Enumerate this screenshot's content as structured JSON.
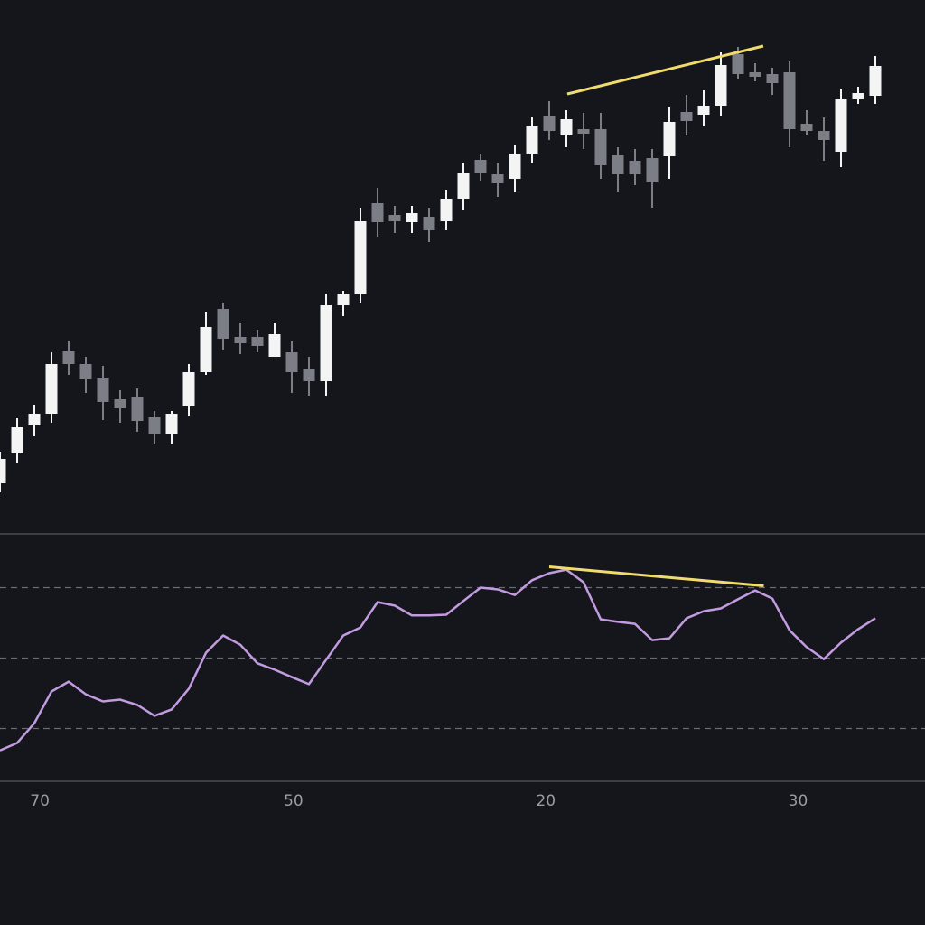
{
  "chart_data": [
    {
      "type": "candlestick",
      "ylim": [
        0,
        590
      ],
      "up_color": "#f4f4f4",
      "down_color": "#7b7e84",
      "open": [
        55,
        88,
        119,
        132,
        201,
        187,
        172,
        148,
        150,
        128,
        110,
        140,
        178,
        248,
        217,
        217,
        195,
        200,
        182,
        168,
        252,
        265,
        365,
        352,
        344,
        350,
        345,
        370,
        413,
        397,
        392,
        420,
        462,
        440,
        447,
        447,
        418,
        412,
        415,
        417,
        466,
        463,
        473,
        530,
        510,
        508,
        510,
        453,
        445,
        422,
        480,
        484
      ],
      "high": [
        90,
        127,
        142,
        200,
        212,
        195,
        185,
        158,
        160,
        135,
        135,
        187,
        245,
        255,
        232,
        225,
        232,
        212,
        195,
        265,
        268,
        360,
        382,
        362,
        362,
        360,
        380,
        410,
        420,
        410,
        430,
        460,
        478,
        468,
        465,
        465,
        427,
        425,
        425,
        472,
        485,
        490,
        532,
        538,
        520,
        515,
        522,
        468,
        460,
        492,
        494,
        528
      ],
      "low": [
        45,
        78,
        107,
        122,
        175,
        155,
        125,
        122,
        112,
        98,
        98,
        130,
        175,
        202,
        198,
        200,
        195,
        155,
        152,
        152,
        240,
        255,
        328,
        332,
        332,
        322,
        335,
        358,
        390,
        372,
        378,
        410,
        435,
        427,
        425,
        392,
        378,
        385,
        360,
        392,
        440,
        450,
        462,
        502,
        500,
        485,
        427,
        440,
        412,
        405,
        475,
        475
      ],
      "close": [
        82,
        117,
        132,
        187,
        187,
        170,
        145,
        138,
        124,
        110,
        132,
        178,
        228,
        215,
        210,
        207,
        220,
        178,
        168,
        252,
        265,
        345,
        344,
        345,
        354,
        335,
        370,
        398,
        398,
        387,
        420,
        450,
        445,
        458,
        442,
        407,
        397,
        397,
        388,
        455,
        456,
        473,
        518,
        508,
        505,
        498,
        447,
        445,
        435,
        480,
        487,
        517
      ],
      "trendlines": [
        {
          "x": [
            33.05,
            44.47
          ],
          "values": [
            486,
            539
          ],
          "color": "#f0dc6e"
        }
      ]
    },
    {
      "type": "line",
      "ylim": [
        15,
        85
      ],
      "levels": [
        70,
        50,
        30
      ],
      "color": "#c39be0",
      "values": [
        23.8,
        25.9,
        31.5,
        40.5,
        43.3,
        39.7,
        37.7,
        38.2,
        36.7,
        33.6,
        35.4,
        41.3,
        51.5,
        56.4,
        53.8,
        48.5,
        46.7,
        44.6,
        42.6,
        49.5,
        56.4,
        58.7,
        65.9,
        64.9,
        62.1,
        62.1,
        62.3,
        66.2,
        70.0,
        69.5,
        67.9,
        72.1,
        74.1,
        75.1,
        71.5,
        61.0,
        60.3,
        59.7,
        55.1,
        55.6,
        61.3,
        63.3,
        64.1,
        66.7,
        69.2,
        66.9,
        57.9,
        53.1,
        49.7,
        54.4,
        58.2,
        61.3
      ],
      "trendlines": [
        {
          "x": [
            32.0,
            44.5
          ],
          "values": [
            75.9,
            70.5
          ],
          "color": "#f0dc6e"
        }
      ],
      "xticks": [
        {
          "value": 2.32,
          "label": "70"
        },
        {
          "value": 17.1,
          "label": "50"
        },
        {
          "value": 31.8,
          "label": "20"
        },
        {
          "value": 46.5,
          "label": "30"
        }
      ]
    }
  ]
}
